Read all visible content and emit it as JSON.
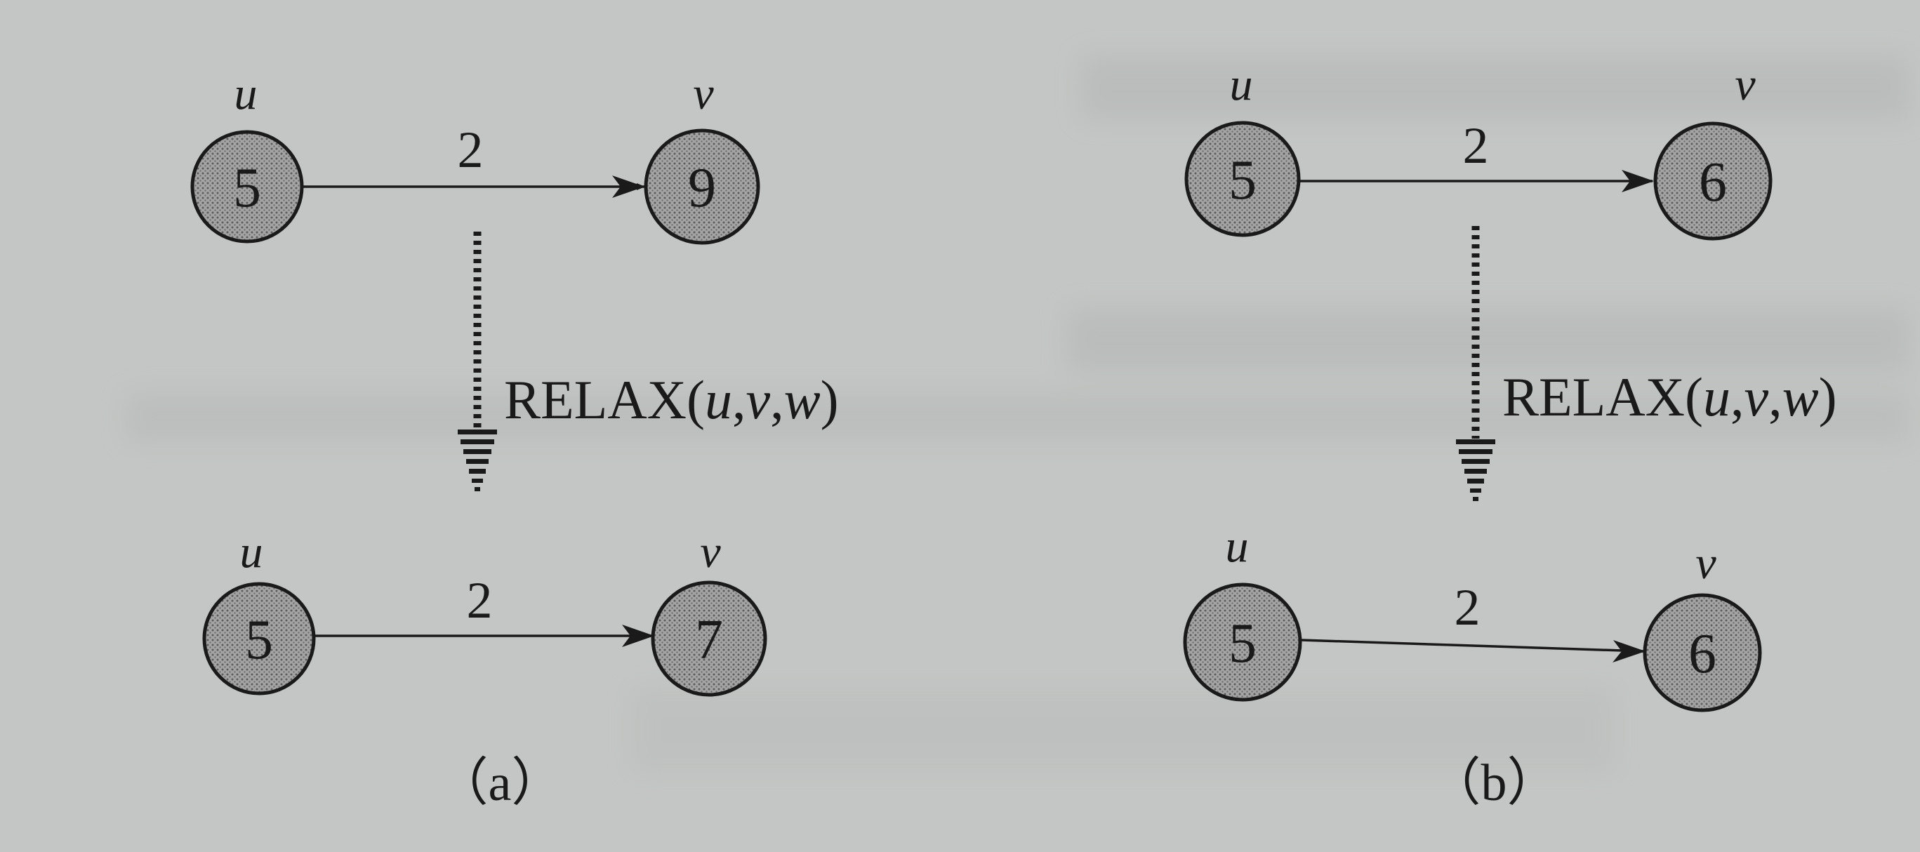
{
  "panels": [
    {
      "id": "a",
      "before": {
        "u_label": "u",
        "v_label": "v",
        "u_value": "5",
        "v_value": "9",
        "weight": "2"
      },
      "operation": {
        "name": "RELAX",
        "args": [
          "u",
          "v",
          "w"
        ]
      },
      "after": {
        "u_label": "u",
        "v_label": "v",
        "u_value": "5",
        "v_value": "7",
        "weight": "2"
      },
      "caption": "（a）"
    },
    {
      "id": "b",
      "before": {
        "u_label": "u",
        "v_label": "v",
        "u_value": "5",
        "v_value": "6",
        "weight": "2"
      },
      "operation": {
        "name": "RELAX",
        "args": [
          "u",
          "v",
          "w"
        ]
      },
      "after": {
        "u_label": "u",
        "v_label": "v",
        "u_value": "5",
        "v_value": "6",
        "weight": "2"
      },
      "caption": "（b）"
    }
  ],
  "colors": {
    "paper": "#c3c6c4",
    "ink": "#1a1a1a",
    "node_fill": "#9a9a9a"
  }
}
